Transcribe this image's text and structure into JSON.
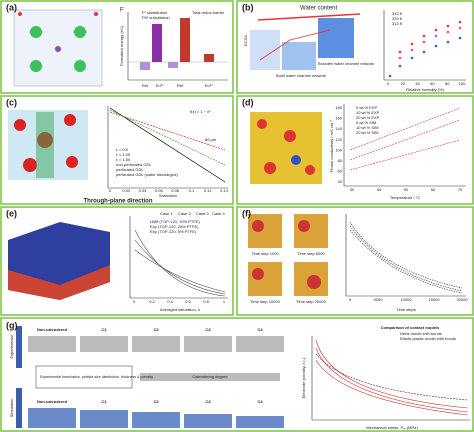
{
  "panels": [
    {
      "label": "(a)",
      "texts": [
        "F",
        "Fᶜ substitution",
        "Pbᶜ substitution",
        "Total redox barrier",
        "Ref",
        "Eu³⁺",
        "Ref",
        "Eu³⁺",
        "Formation energy (eV)"
      ]
    },
    {
      "label": "(b)",
      "texts": [
        "Water content",
        "ECSA",
        "Build water channel network",
        "Broaden water channel network",
        "343 K",
        "333 K",
        "313 K",
        "Relative humidity (%)"
      ],
      "ticks": [
        "0",
        "20",
        "40",
        "60",
        "80",
        "100"
      ]
    },
    {
      "label": "(c)",
      "texts": [
        "f(x) = 1 − x³",
        "80 µm",
        "ε = 0.5",
        "ε = 1.00",
        "ε = 1.50",
        "non-perforated GDL",
        "perforated GDL",
        "perforated GDL (water discharged)",
        "Saturation",
        "Through-plane direction"
      ],
      "ticks": [
        "0",
        "0.02",
        "0.04",
        "0.06",
        "0.08",
        "0.1",
        "0.12",
        "0.14"
      ]
    },
    {
      "label": "(d)",
      "texts": [
        "0 wt.% EXP",
        "10 wt.% EXP",
        "20 wt.% EXP",
        "0 wt.% SIM",
        "10 wt.% SIM",
        "20 wt.% SIM",
        "Proton conductivity / mS cm⁻¹",
        "Temperature / °C"
      ],
      "ticks": [
        "30",
        "40",
        "50",
        "60",
        "70"
      ],
      "yticks": [
        "40",
        "60",
        "80",
        "100",
        "120",
        "140",
        "160",
        "180"
      ]
    },
    {
      "label": "(e)",
      "texts": [
        "Case 1",
        "Case 2",
        "Case 3",
        "Case 4",
        "LBM (TGP-120, 10% PTFE)",
        "Exp (TGP-120, 20% PTFE)",
        "Exp (TGP-120, 5% PTFE)",
        "Averaged saturation, s"
      ],
      "ticks": [
        "0",
        "0.2",
        "0.4",
        "0.6",
        "0.8",
        "1"
      ]
    },
    {
      "label": "(f)",
      "texts": [
        "Time step 1000",
        "Time step 5000",
        "Time step 10000",
        "Time step 20000",
        "Time steps"
      ],
      "ticks": [
        "0",
        "5000",
        "10000",
        "15000",
        "20000"
      ]
    },
    {
      "label": "(g)",
      "texts": [
        "Experimental",
        "Simulation",
        "Non-calendered",
        "C1",
        "C2",
        "C3",
        "C4",
        "Experimental formulation, particle size distribution, thickness & porosity",
        "Calendering degree",
        "Non-calendered",
        "C1",
        "C2",
        "C3",
        "C4",
        "Comparison of contact models",
        "Hertz model with bonds",
        "Elasto-plastic model with bonds",
        "Mechanical stress, Pₘ (MPa)",
        "Electrode porosity, ε (-)"
      ]
    }
  ]
}
